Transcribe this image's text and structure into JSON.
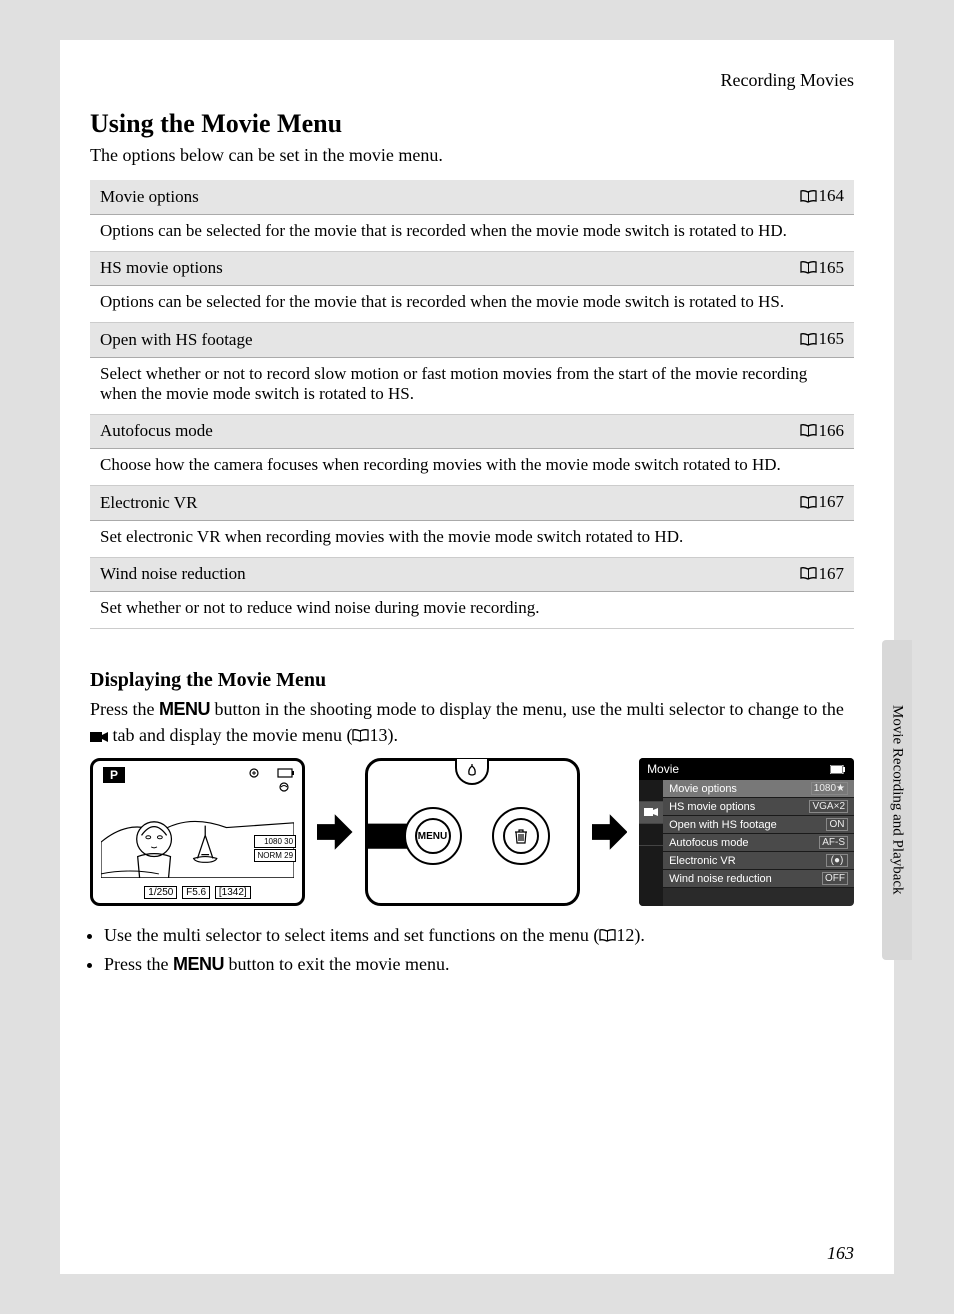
{
  "chapter_header": "Recording Movies",
  "main_title": "Using the Movie Menu",
  "intro": "The options below can be set in the movie menu.",
  "options": [
    {
      "title": "Movie options",
      "page": "164",
      "desc": "Options can be selected for the movie that is recorded when the movie mode switch is rotated to HD."
    },
    {
      "title": "HS movie options",
      "page": "165",
      "desc": "Options can be selected for the movie that is recorded when the movie mode switch is rotated to HS."
    },
    {
      "title": "Open with HS footage",
      "page": "165",
      "desc": "Select whether or not to record slow motion or fast motion movies from the start of the movie recording when the movie mode switch is rotated to HS."
    },
    {
      "title": "Autofocus mode",
      "page": "166",
      "desc": "Choose how the camera focuses when recording movies with the movie mode switch rotated to HD."
    },
    {
      "title": "Electronic VR",
      "page": "167",
      "desc": "Set electronic VR when recording movies with the movie mode switch rotated to HD."
    },
    {
      "title": "Wind noise reduction",
      "page": "167",
      "desc": "Set whether or not to reduce wind noise during movie recording."
    }
  ],
  "subsection_title": "Displaying the Movie Menu",
  "body_lines": {
    "l1a": "Press the ",
    "l1_menu": "MENU",
    "l1b": " button in the shooting mode to display the menu, use the multi selector to change to the ",
    "l1c": " tab and display the movie menu (",
    "l1_ref": "13",
    "l1d": ")."
  },
  "lcd": {
    "mode": "P",
    "shutter": "1/250",
    "aperture": "F5.6",
    "counter": "[1342]",
    "badge1": "1080 30",
    "badge2": "NORM 29"
  },
  "menu_screen": {
    "title": "Movie",
    "items": [
      {
        "label": "Movie options",
        "value": "1080★"
      },
      {
        "label": "HS movie options",
        "value": "VGA×2"
      },
      {
        "label": "Open with HS footage",
        "value": "ON"
      },
      {
        "label": "Autofocus mode",
        "value": "AF-S"
      },
      {
        "label": "Electronic VR",
        "value": "(●)"
      },
      {
        "label": "Wind noise reduction",
        "value": "OFF"
      }
    ]
  },
  "bullets": {
    "b1a": "Use the multi selector to select items and set functions on the menu (",
    "b1_ref": "12",
    "b1b": ").",
    "b2a": "Press the ",
    "b2_menu": "MENU",
    "b2b": " button to exit the movie menu."
  },
  "side_tab": "Movie Recording and Playback",
  "page_number": "163",
  "menu_btn_label": "MENU",
  "colors": {
    "page_bg": "#ffffff",
    "outer_bg": "#e0e0e0",
    "row_header_bg": "#e5e5e5",
    "menu_dark": "#2a2a2a",
    "menu_row": "#4a4a4a",
    "menu_selected": "#787878"
  }
}
